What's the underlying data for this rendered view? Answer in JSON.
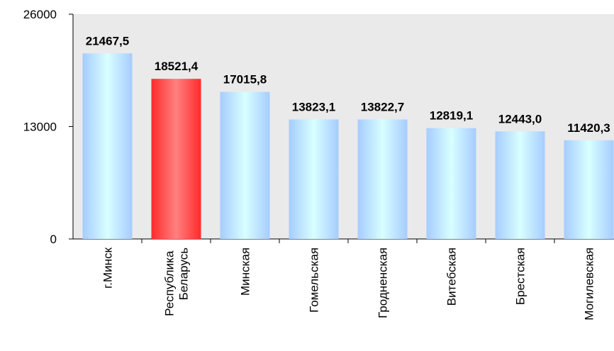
{
  "chart_data": {
    "type": "bar",
    "categories": [
      "г.Минск",
      "Республика Беларусь",
      "Минская",
      "Гомельская",
      "Гродненская",
      "Витебская",
      "Брестская",
      "Могилевская"
    ],
    "values": [
      21467.5,
      18521.4,
      17015.8,
      13823.1,
      13822.7,
      12819.1,
      12443.0,
      11420.3
    ],
    "value_labels": [
      "21467,5",
      "18521,4",
      "17015,8",
      "13823,1",
      "13822,7",
      "12819,1",
      "12443,0",
      "11420,3"
    ],
    "colors": [
      "#b4d8ff",
      "#ff3030",
      "#b4d8ff",
      "#b4d8ff",
      "#b4d8ff",
      "#b4d8ff",
      "#b4d8ff",
      "#b4d8ff"
    ],
    "ylim": [
      0,
      26000
    ],
    "yticks": [
      0,
      13000,
      26000
    ]
  }
}
